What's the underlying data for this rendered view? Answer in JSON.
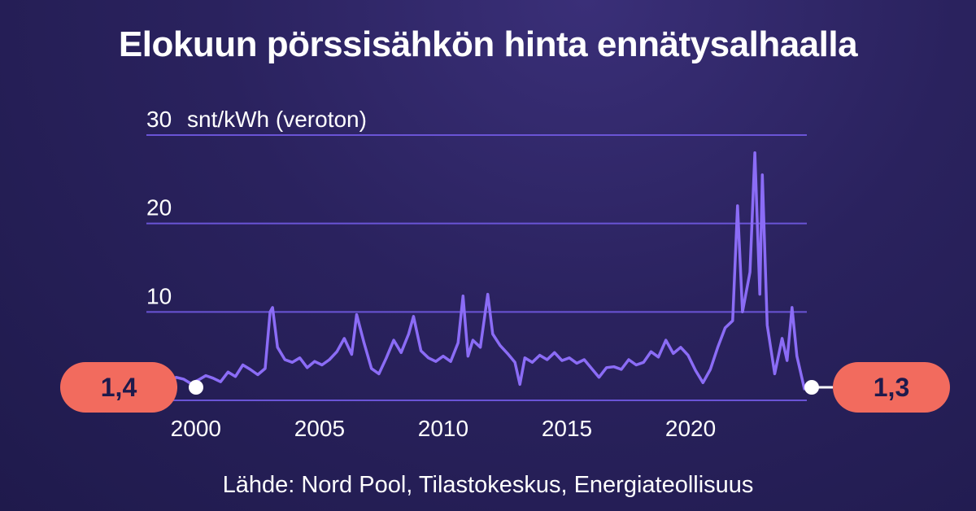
{
  "title": "Elokuun pörssisähkön hinta ennätysalhaalla",
  "source": "Lähde: Nord Pool, Tilastokeskus, Energiateollisuus",
  "colors": {
    "line": "#8b6cf6",
    "grid": "#6a54d6",
    "callout": "#f26b5e",
    "text": "#ffffff"
  },
  "chart_data": {
    "type": "line",
    "title": "Elokuun pörssisähkön hinta ennätysalhaalla",
    "ylabel": "snt/kWh (veroton)",
    "ylim": [
      0,
      30
    ],
    "xlim": [
      1998,
      2024.7
    ],
    "y_ticks": [
      {
        "value": 10,
        "label": "10"
      },
      {
        "value": 20,
        "label": "20"
      },
      {
        "value": 30,
        "label": "30"
      }
    ],
    "y_unit": "snt/kWh (veroton)",
    "x_ticks": [
      {
        "value": 2000,
        "label": "2000"
      },
      {
        "value": 2005,
        "label": "2005"
      },
      {
        "value": 2010,
        "label": "2010"
      },
      {
        "value": 2015,
        "label": "2015"
      },
      {
        "value": 2020,
        "label": "2020"
      }
    ],
    "series": [
      {
        "points": [
          [
            1998.0,
            3.0
          ],
          [
            1998.3,
            2.0
          ],
          [
            1998.6,
            1.4
          ],
          [
            1998.9,
            1.8
          ],
          [
            1999.2,
            2.6
          ],
          [
            1999.5,
            2.4
          ],
          [
            1999.8,
            1.9
          ],
          [
            2000.1,
            2.3
          ],
          [
            2000.4,
            2.8
          ],
          [
            2000.7,
            2.5
          ],
          [
            2001.0,
            2.1
          ],
          [
            2001.3,
            3.2
          ],
          [
            2001.6,
            2.7
          ],
          [
            2001.9,
            4.0
          ],
          [
            2002.2,
            3.5
          ],
          [
            2002.5,
            2.9
          ],
          [
            2002.8,
            3.6
          ],
          [
            2003.0,
            10.0
          ],
          [
            2003.1,
            10.5
          ],
          [
            2003.3,
            6.0
          ],
          [
            2003.6,
            4.6
          ],
          [
            2003.9,
            4.3
          ],
          [
            2004.2,
            4.8
          ],
          [
            2004.5,
            3.7
          ],
          [
            2004.8,
            4.4
          ],
          [
            2005.1,
            4.0
          ],
          [
            2005.4,
            4.6
          ],
          [
            2005.7,
            5.5
          ],
          [
            2006.0,
            7.0
          ],
          [
            2006.3,
            5.2
          ],
          [
            2006.5,
            9.7
          ],
          [
            2006.8,
            6.5
          ],
          [
            2007.1,
            3.6
          ],
          [
            2007.4,
            3.0
          ],
          [
            2007.7,
            4.8
          ],
          [
            2008.0,
            6.8
          ],
          [
            2008.3,
            5.4
          ],
          [
            2008.6,
            7.5
          ],
          [
            2008.8,
            9.5
          ],
          [
            2009.1,
            5.6
          ],
          [
            2009.4,
            4.8
          ],
          [
            2009.7,
            4.4
          ],
          [
            2010.0,
            5.0
          ],
          [
            2010.3,
            4.4
          ],
          [
            2010.6,
            6.5
          ],
          [
            2010.8,
            11.8
          ],
          [
            2011.0,
            5.0
          ],
          [
            2011.2,
            6.8
          ],
          [
            2011.5,
            6.0
          ],
          [
            2011.8,
            12.0
          ],
          [
            2012.0,
            7.5
          ],
          [
            2012.3,
            6.2
          ],
          [
            2012.6,
            5.3
          ],
          [
            2012.9,
            4.3
          ],
          [
            2013.1,
            1.8
          ],
          [
            2013.3,
            4.8
          ],
          [
            2013.6,
            4.3
          ],
          [
            2013.9,
            5.1
          ],
          [
            2014.2,
            4.6
          ],
          [
            2014.5,
            5.4
          ],
          [
            2014.8,
            4.5
          ],
          [
            2015.1,
            4.8
          ],
          [
            2015.4,
            4.2
          ],
          [
            2015.7,
            4.6
          ],
          [
            2016.0,
            3.6
          ],
          [
            2016.3,
            2.6
          ],
          [
            2016.6,
            3.7
          ],
          [
            2016.9,
            3.8
          ],
          [
            2017.2,
            3.5
          ],
          [
            2017.5,
            4.6
          ],
          [
            2017.8,
            4.0
          ],
          [
            2018.1,
            4.3
          ],
          [
            2018.4,
            5.5
          ],
          [
            2018.7,
            4.9
          ],
          [
            2019.0,
            6.8
          ],
          [
            2019.3,
            5.3
          ],
          [
            2019.6,
            6.0
          ],
          [
            2019.9,
            5.1
          ],
          [
            2020.2,
            3.4
          ],
          [
            2020.5,
            2.0
          ],
          [
            2020.8,
            3.5
          ],
          [
            2021.1,
            6.0
          ],
          [
            2021.4,
            8.2
          ],
          [
            2021.7,
            9.0
          ],
          [
            2021.9,
            22.0
          ],
          [
            2022.1,
            10.0
          ],
          [
            2022.4,
            14.5
          ],
          [
            2022.6,
            28.0
          ],
          [
            2022.8,
            12.0
          ],
          [
            2022.9,
            25.5
          ],
          [
            2023.1,
            8.5
          ],
          [
            2023.4,
            3.0
          ],
          [
            2023.7,
            7.0
          ],
          [
            2023.9,
            4.5
          ],
          [
            2024.1,
            10.5
          ],
          [
            2024.3,
            5.0
          ],
          [
            2024.6,
            1.3
          ]
        ]
      }
    ],
    "callouts": [
      {
        "label": "1,4",
        "x": 1998.6,
        "y": 1.4,
        "side": "left"
      },
      {
        "label": "1,3",
        "x": 2024.6,
        "y": 1.3,
        "side": "right"
      }
    ]
  }
}
